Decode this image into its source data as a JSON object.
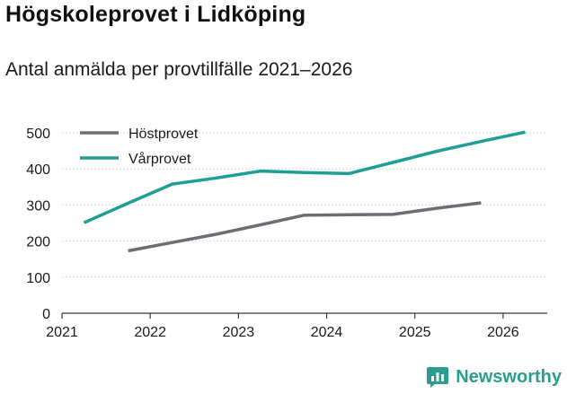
{
  "chart_data": {
    "type": "line",
    "title": "Högskoleprovet i Lidköping",
    "subtitle": "Antal anmälda per provtillfälle 2021–2026",
    "xlabel": "",
    "ylabel": "",
    "x_ticks": [
      "2021",
      "2022",
      "2023",
      "2024",
      "2025",
      "2026"
    ],
    "xlim": [
      2021,
      2026.5
    ],
    "y_ticks": [
      "0",
      "100",
      "200",
      "300",
      "400",
      "500"
    ],
    "ylim": [
      0,
      500
    ],
    "legend_position": "top-left",
    "series": [
      {
        "name": "Höstprovet",
        "color": "#6e6d74",
        "x": [
          2021.75,
          2022.25,
          2022.75,
          2023.25,
          2023.75,
          2024.25,
          2024.75,
          2025.25,
          2025.75
        ],
        "values": [
          173,
          196,
          219,
          245,
          272,
          273,
          274,
          291,
          306
        ]
      },
      {
        "name": "Vårprovet",
        "color": "#1f9e96",
        "x": [
          2021.25,
          2021.75,
          2022.25,
          2022.75,
          2023.25,
          2023.75,
          2024.25,
          2024.75,
          2025.25,
          2025.75,
          2026.25
        ],
        "values": [
          251,
          305,
          358,
          375,
          394,
          390,
          387,
          418,
          449,
          476,
          502
        ]
      }
    ]
  },
  "branding": {
    "name": "Newsworthy",
    "icon": "newsworthy-logo-icon",
    "color": "#2a9d8f"
  }
}
